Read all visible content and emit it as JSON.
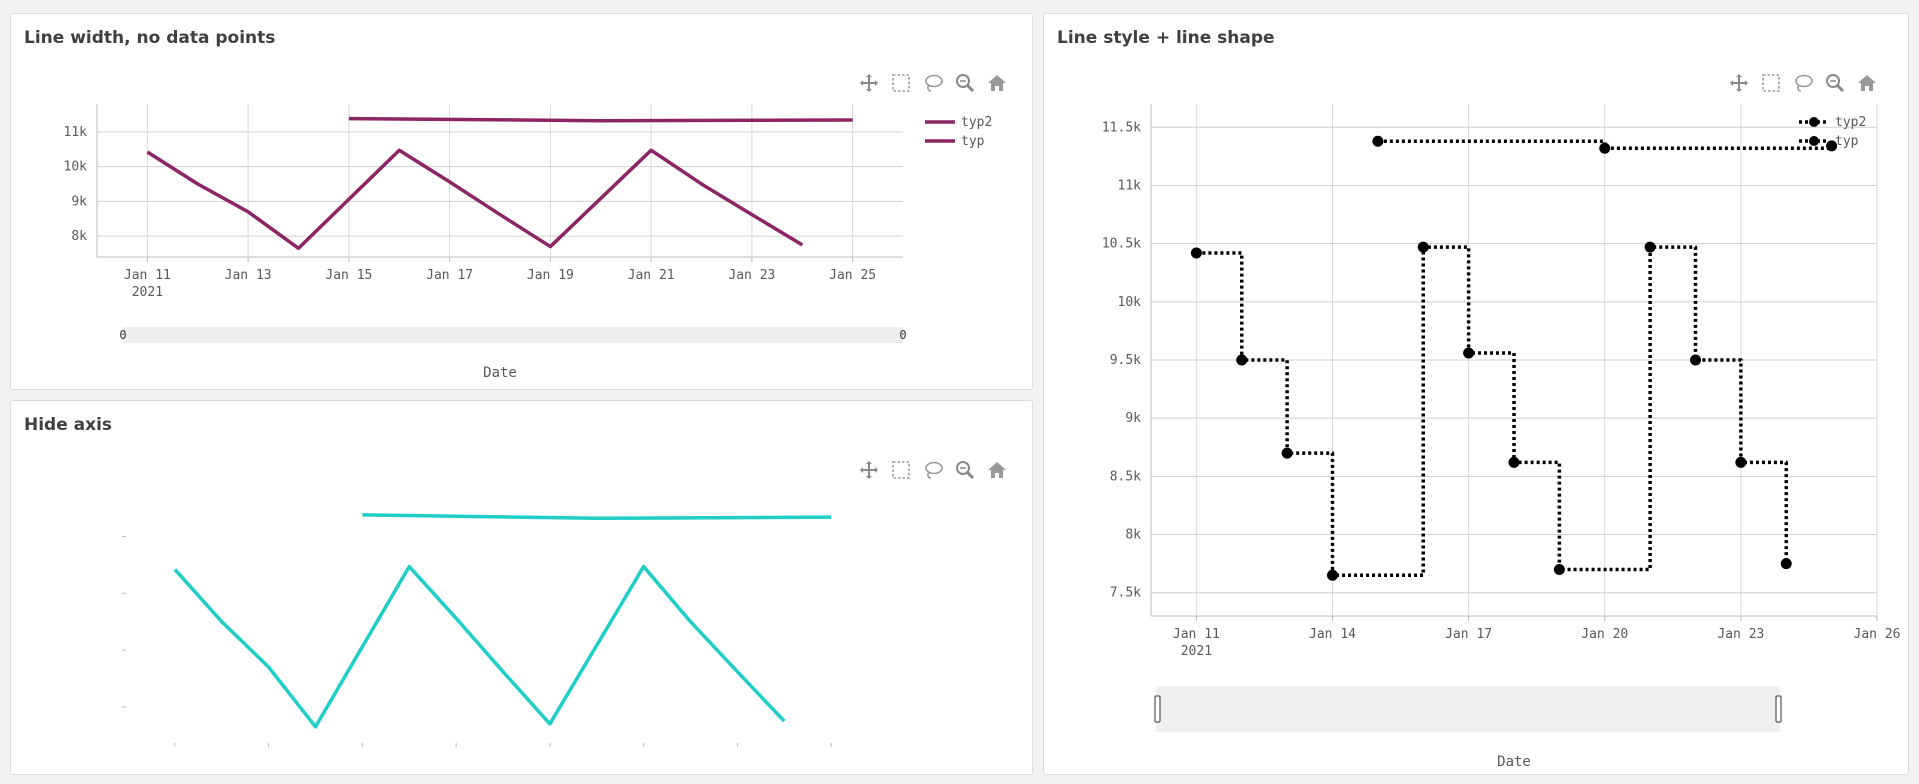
{
  "toolbar_icons": [
    "pan-icon",
    "box-select-icon",
    "lasso-icon",
    "zoom-icon",
    "home-icon"
  ],
  "panels": {
    "p1": {
      "title": "Line width, no data points"
    },
    "p2": {
      "title": "Hide axis"
    },
    "p3": {
      "title": "Line style + line shape"
    }
  },
  "chart_data": [
    {
      "type": "line",
      "title": "Line width, no data points",
      "xlabel": "Date",
      "ylabel": "",
      "x_tick_labels": [
        "Jan 11\n2021",
        "Jan 13",
        "Jan 15",
        "Jan 17",
        "Jan 19",
        "Jan 21",
        "Jan 23",
        "Jan 25"
      ],
      "y_tick_labels": [
        "8k",
        "9k",
        "10k",
        "11k"
      ],
      "xlim": [
        "2021-01-10",
        "2021-01-26"
      ],
      "ylim": [
        7400,
        11800
      ],
      "grid": true,
      "legend_position": "top-right",
      "line_color": "#8b2565",
      "rangeslider": {
        "left_label": "0",
        "right_label": "0"
      },
      "series": [
        {
          "name": "typ2",
          "x": [
            "2021-01-15",
            "2021-01-20",
            "2021-01-25"
          ],
          "y": [
            11380,
            11320,
            11340
          ]
        },
        {
          "name": "typ",
          "x": [
            "2021-01-11",
            "2021-01-12",
            "2021-01-13",
            "2021-01-14",
            "2021-01-16",
            "2021-01-17",
            "2021-01-18",
            "2021-01-19",
            "2021-01-21",
            "2021-01-22",
            "2021-01-23",
            "2021-01-24"
          ],
          "y": [
            10420,
            9500,
            8700,
            7650,
            10470,
            9560,
            8620,
            7700,
            10470,
            9500,
            8620,
            7750
          ]
        }
      ]
    },
    {
      "type": "line",
      "title": "Hide axis",
      "axes_visible": false,
      "xlim": [
        "2021-01-10",
        "2021-01-26"
      ],
      "ylim": [
        7400,
        11800
      ],
      "line_color": "#1fcec6",
      "series": [
        {
          "x": [
            "2021-01-15",
            "2021-01-20",
            "2021-01-25"
          ],
          "y": [
            11380,
            11320,
            11340
          ]
        },
        {
          "x": [
            "2021-01-11",
            "2021-01-12",
            "2021-01-13",
            "2021-01-14",
            "2021-01-16",
            "2021-01-17",
            "2021-01-18",
            "2021-01-19",
            "2021-01-21",
            "2021-01-22",
            "2021-01-23",
            "2021-01-24"
          ],
          "y": [
            10420,
            9500,
            8700,
            7650,
            10470,
            9560,
            8620,
            7700,
            10470,
            9500,
            8620,
            7750
          ]
        }
      ]
    },
    {
      "type": "line",
      "title": "Line style + line shape",
      "xlabel": "Date",
      "ylabel": "",
      "line_shape": "step (hv)",
      "line_dash": "dot",
      "markers": true,
      "line_color": "#000000",
      "x_tick_labels": [
        "Jan 11\n2021",
        "Jan 14",
        "Jan 17",
        "Jan 20",
        "Jan 23",
        "Jan 26"
      ],
      "y_tick_labels": [
        "7.5k",
        "8k",
        "8.5k",
        "9k",
        "9.5k",
        "10k",
        "10.5k",
        "11k",
        "11.5k"
      ],
      "xlim": [
        "2021-01-10",
        "2021-01-26"
      ],
      "ylim": [
        7300,
        11700
      ],
      "grid": true,
      "legend_position": "top-right",
      "rangeslider": {},
      "series": [
        {
          "name": "typ2",
          "x": [
            "2021-01-15",
            "2021-01-20",
            "2021-01-25"
          ],
          "y": [
            11380,
            11320,
            11340
          ]
        },
        {
          "name": "typ",
          "x": [
            "2021-01-11",
            "2021-01-12",
            "2021-01-13",
            "2021-01-14",
            "2021-01-16",
            "2021-01-17",
            "2021-01-18",
            "2021-01-19",
            "2021-01-21",
            "2021-01-22",
            "2021-01-23",
            "2021-01-24"
          ],
          "y": [
            10420,
            9500,
            8700,
            7650,
            10470,
            9560,
            8620,
            7700,
            10470,
            9500,
            8620,
            7750
          ]
        }
      ]
    }
  ]
}
